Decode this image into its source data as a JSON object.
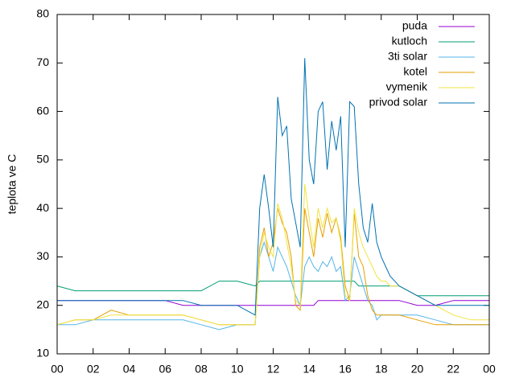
{
  "chart_data": {
    "type": "line",
    "ylabel": "teplota ve C",
    "x": [
      0,
      1,
      2,
      3,
      4,
      5,
      6,
      7,
      8,
      9,
      10,
      11,
      11.25,
      11.5,
      11.75,
      12,
      12.25,
      12.5,
      12.75,
      13,
      13.25,
      13.5,
      13.75,
      14,
      14.25,
      14.5,
      14.75,
      15,
      15.25,
      15.5,
      15.75,
      16,
      16.25,
      16.5,
      16.75,
      17,
      17.25,
      17.5,
      17.75,
      18,
      18.25,
      18.5,
      19,
      20,
      21,
      22,
      23,
      24
    ],
    "xlim": [
      0,
      24
    ],
    "xticks": [
      {
        "value": 0,
        "label": "00"
      },
      {
        "value": 2,
        "label": "02"
      },
      {
        "value": 4,
        "label": "04"
      },
      {
        "value": 6,
        "label": "06"
      },
      {
        "value": 8,
        "label": "08"
      },
      10,
      12,
      14,
      16,
      18,
      20,
      22,
      {
        "value": 24,
        "label": "00"
      }
    ],
    "ylim": [
      10,
      80
    ],
    "yticks": [
      10,
      20,
      30,
      40,
      50,
      60,
      70,
      80
    ],
    "legend": "top-right",
    "series": [
      {
        "name": "puda",
        "color": "#9400d3",
        "values": [
          21,
          21,
          21,
          21,
          21,
          21,
          21,
          20,
          20,
          20,
          20,
          20,
          20,
          20,
          20,
          20,
          20,
          20,
          20,
          20,
          20,
          20,
          20,
          20,
          20,
          21,
          21,
          21,
          21,
          21,
          21,
          21,
          21,
          21,
          21,
          21,
          21,
          21,
          21,
          21,
          21,
          21,
          21,
          20,
          20,
          21,
          21,
          21
        ]
      },
      {
        "name": "kutloch",
        "color": "#009e73",
        "values": [
          24,
          23,
          23,
          23,
          23,
          23,
          23,
          23,
          23,
          25,
          25,
          24,
          25,
          25,
          25,
          25,
          25,
          25,
          25,
          25,
          25,
          25,
          25,
          25,
          25,
          25,
          25,
          25,
          25,
          25,
          25,
          25,
          25,
          25,
          24,
          24,
          24,
          24,
          24,
          24,
          24,
          24,
          24,
          22,
          22,
          22,
          22,
          22
        ]
      },
      {
        "name": "3ti solar",
        "color": "#56b4e9",
        "values": [
          16,
          16,
          17,
          17,
          17,
          17,
          17,
          17,
          16,
          15,
          16,
          16,
          30,
          33,
          30,
          27,
          32,
          30,
          28,
          25,
          22,
          20,
          28,
          30,
          28,
          27,
          29,
          28,
          30,
          27,
          28,
          21,
          22,
          30,
          27,
          24,
          21,
          20,
          17,
          18,
          18,
          18,
          18,
          18,
          17,
          16,
          16,
          16
        ]
      },
      {
        "name": "kotel",
        "color": "#e69f00",
        "values": [
          16,
          17,
          17,
          19,
          18,
          18,
          18,
          18,
          17,
          16,
          16,
          16,
          32,
          36,
          30,
          33,
          40,
          37,
          35,
          30,
          20,
          19,
          40,
          35,
          30,
          38,
          34,
          39,
          35,
          38,
          34,
          24,
          21,
          39,
          30,
          28,
          22,
          19,
          18,
          18,
          18,
          18,
          18,
          17,
          16,
          16,
          16,
          16
        ]
      },
      {
        "name": "vymenik",
        "color": "#f0e442",
        "values": [
          16,
          17,
          17,
          18,
          18,
          18,
          18,
          18,
          17,
          16,
          16,
          16,
          30,
          35,
          32,
          30,
          41,
          38,
          33,
          28,
          21,
          20,
          45,
          38,
          32,
          40,
          36,
          40,
          37,
          38,
          33,
          22,
          21,
          40,
          35,
          32,
          30,
          28,
          26,
          25,
          25,
          24,
          24,
          22,
          20,
          18,
          17,
          17
        ]
      },
      {
        "name": "privod solar",
        "color": "#0072b2",
        "values": [
          21,
          21,
          21,
          21,
          21,
          21,
          21,
          21,
          20,
          20,
          20,
          18,
          40,
          47,
          40,
          32,
          63,
          55,
          57,
          42,
          37,
          32,
          71,
          50,
          45,
          60,
          62,
          48,
          58,
          52,
          59,
          32,
          62,
          61,
          45,
          36,
          33,
          41,
          33,
          30,
          28,
          26,
          24,
          22,
          20,
          20,
          20,
          20
        ]
      }
    ]
  }
}
